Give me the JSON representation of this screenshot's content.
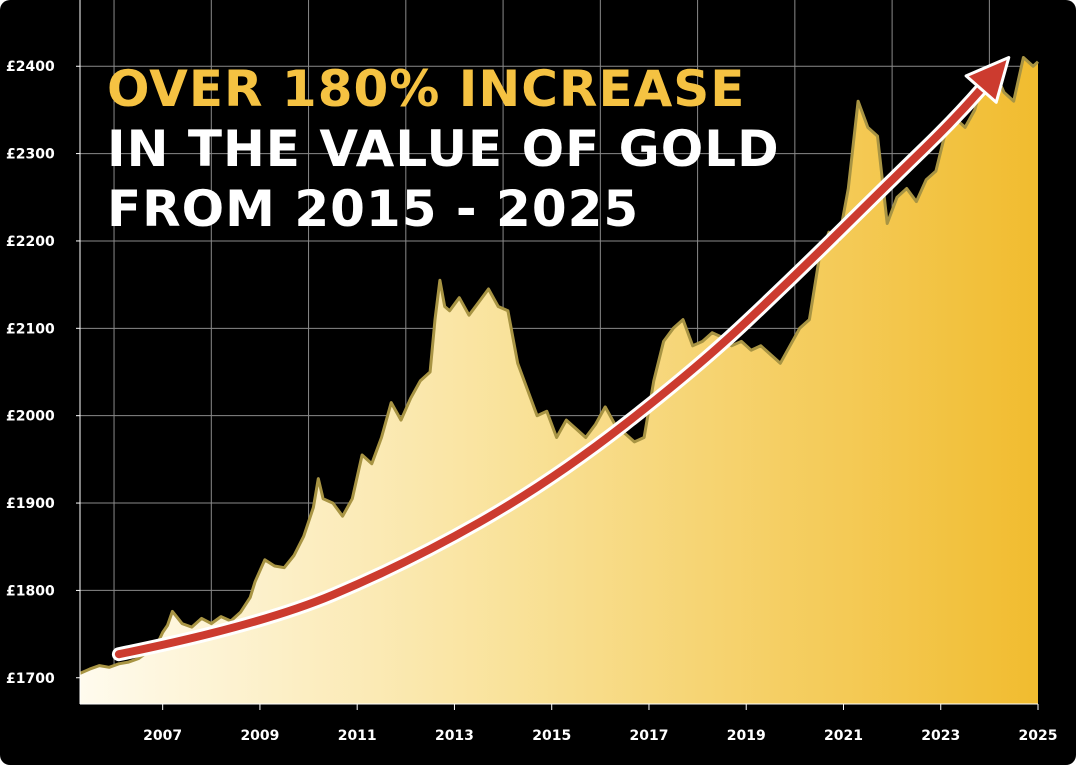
{
  "headline": {
    "line1": "OVER 180% INCREASE",
    "line2": "IN THE VALUE OF GOLD",
    "line3": "FROM 2015 - 2025"
  },
  "colors": {
    "background": "#000000",
    "accent_text": "#f5c242",
    "text": "#ffffff",
    "fill_light": "#fffbee",
    "fill_dark": "#f1bc2f",
    "line": "#a89443",
    "arrow": "#cc3b2f",
    "arrow_outline": "#ffffff",
    "grid": "#8a8a8a"
  },
  "chart_data": {
    "type": "area",
    "title": "OVER 180% INCREASE IN THE VALUE OF GOLD FROM 2015 - 2025",
    "xlabel": "",
    "ylabel": "",
    "xlim": [
      2005.3,
      2025
    ],
    "ylim": [
      1670,
      2430
    ],
    "y_ticks": [
      {
        "value": 1700,
        "label": "£1700"
      },
      {
        "value": 1800,
        "label": "£1800"
      },
      {
        "value": 1900,
        "label": "£1900"
      },
      {
        "value": 2000,
        "label": "£2000"
      },
      {
        "value": 2100,
        "label": "£2100"
      },
      {
        "value": 2200,
        "label": "£2200"
      },
      {
        "value": 2300,
        "label": "£2300"
      },
      {
        "value": 2400,
        "label": "£2400"
      }
    ],
    "x_ticks": [
      {
        "value": 2007,
        "label": "2007"
      },
      {
        "value": 2009,
        "label": "2009"
      },
      {
        "value": 2011,
        "label": "2011"
      },
      {
        "value": 2013,
        "label": "2013"
      },
      {
        "value": 2015,
        "label": "2015"
      },
      {
        "value": 2017,
        "label": "2017"
      },
      {
        "value": 2019,
        "label": "2019"
      },
      {
        "value": 2021,
        "label": "2021"
      },
      {
        "value": 2023,
        "label": "2023"
      },
      {
        "value": 2025,
        "label": "2025"
      }
    ],
    "grid": true,
    "series": [
      {
        "x": [
          2005.3,
          2005.5,
          2005.7,
          2005.9,
          2006.1,
          2006.3,
          2006.5,
          2006.7,
          2006.9,
          2007.0,
          2007.1,
          2007.2,
          2007.4,
          2007.6,
          2007.8,
          2008.0,
          2008.2,
          2008.4,
          2008.6,
          2008.8,
          2008.9,
          2009.1,
          2009.3,
          2009.5,
          2009.7,
          2009.9,
          2010.1,
          2010.2,
          2010.3,
          2010.5,
          2010.7,
          2010.9,
          2011.1,
          2011.3,
          2011.5,
          2011.7,
          2011.9,
          2012.1,
          2012.3,
          2012.5,
          2012.6,
          2012.7,
          2012.8,
          2012.9,
          2013.1,
          2013.3,
          2013.5,
          2013.7,
          2013.9,
          2014.1,
          2014.3,
          2014.5,
          2014.7,
          2014.9,
          2015.1,
          2015.3,
          2015.5,
          2015.7,
          2015.9,
          2016.1,
          2016.3,
          2016.5,
          2016.7,
          2016.9,
          2017.1,
          2017.3,
          2017.5,
          2017.7,
          2017.9,
          2018.1,
          2018.3,
          2018.5,
          2018.7,
          2018.9,
          2019.1,
          2019.3,
          2019.5,
          2019.7,
          2019.9,
          2020.1,
          2020.3,
          2020.5,
          2020.7,
          2020.9,
          2021.1,
          2021.3,
          2021.5,
          2021.7,
          2021.9,
          2022.1,
          2022.3,
          2022.5,
          2022.7,
          2022.9,
          2023.1,
          2023.3,
          2023.5,
          2023.7,
          2023.9,
          2024.1,
          2024.3,
          2024.5,
          2024.7,
          2024.9,
          2025.0
        ],
        "values": [
          1705,
          1710,
          1714,
          1712,
          1716,
          1718,
          1722,
          1730,
          1740,
          1752,
          1760,
          1776,
          1762,
          1758,
          1768,
          1762,
          1770,
          1765,
          1775,
          1792,
          1810,
          1835,
          1828,
          1826,
          1840,
          1862,
          1895,
          1928,
          1905,
          1900,
          1885,
          1905,
          1955,
          1945,
          1975,
          2015,
          1995,
          2020,
          2040,
          2050,
          2110,
          2155,
          2125,
          2120,
          2135,
          2115,
          2130,
          2145,
          2125,
          2120,
          2060,
          2030,
          2000,
          2005,
          1975,
          1995,
          1985,
          1975,
          1990,
          2010,
          1990,
          1980,
          1970,
          1975,
          2040,
          2085,
          2100,
          2110,
          2080,
          2085,
          2095,
          2090,
          2080,
          2085,
          2075,
          2080,
          2070,
          2060,
          2080,
          2100,
          2110,
          2180,
          2210,
          2200,
          2260,
          2360,
          2330,
          2320,
          2220,
          2250,
          2260,
          2245,
          2270,
          2280,
          2325,
          2340,
          2330,
          2350,
          2390,
          2395,
          2370,
          2360,
          2410,
          2400,
          2405
        ]
      }
    ],
    "trend_arrow": {
      "x": [
        2006.1,
        2009,
        2012,
        2015,
        2018,
        2020,
        2022,
        2023.3,
        2024.4
      ],
      "values": [
        1727,
        1760,
        1830,
        1925,
        2055,
        2160,
        2270,
        2340,
        2410
      ]
    }
  }
}
